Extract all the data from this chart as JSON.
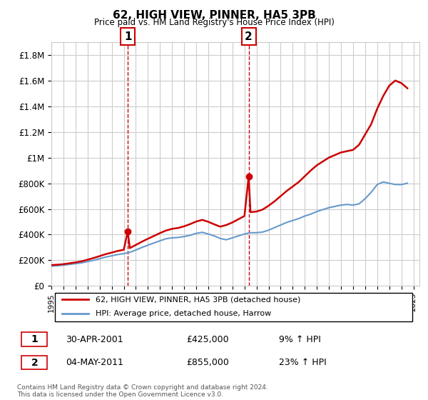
{
  "title": "62, HIGH VIEW, PINNER, HA5 3PB",
  "subtitle": "Price paid vs. HM Land Registry's House Price Index (HPI)",
  "footer": "Contains HM Land Registry data © Crown copyright and database right 2024.\nThis data is licensed under the Open Government Licence v3.0.",
  "legend_line1": "62, HIGH VIEW, PINNER, HA5 3PB (detached house)",
  "legend_line2": "HPI: Average price, detached house, Harrow",
  "annotation1_label": "1",
  "annotation1_date": "30-APR-2001",
  "annotation1_price": "£425,000",
  "annotation1_hpi": "9% ↑ HPI",
  "annotation2_label": "2",
  "annotation2_date": "04-MAY-2011",
  "annotation2_price": "£855,000",
  "annotation2_hpi": "23% ↑ HPI",
  "vline1_x": 2001.33,
  "vline2_x": 2011.35,
  "marker1_x": 2001.33,
  "marker1_y": 425000,
  "marker2_x": 2011.35,
  "marker2_y": 855000,
  "ylim": [
    0,
    1900000
  ],
  "xlim": [
    1995.0,
    2025.5
  ],
  "red_color": "#cc0000",
  "blue_color": "#6699cc",
  "grid_color": "#cccccc",
  "background_color": "#ffffff",
  "yticks": [
    0,
    200000,
    400000,
    600000,
    800000,
    1000000,
    1200000,
    1400000,
    1600000,
    1800000
  ],
  "ytick_labels": [
    "£0",
    "£200K",
    "£400K",
    "£600K",
    "£800K",
    "£1M",
    "£1.2M",
    "£1.4M",
    "£1.6M",
    "£1.8M"
  ],
  "xtick_years": [
    1995,
    1996,
    1997,
    1998,
    1999,
    2000,
    2001,
    2002,
    2003,
    2004,
    2005,
    2006,
    2007,
    2008,
    2009,
    2010,
    2011,
    2012,
    2013,
    2014,
    2015,
    2016,
    2017,
    2018,
    2019,
    2020,
    2021,
    2022,
    2023,
    2024,
    2025
  ],
  "hpi_x": [
    1995.0,
    1995.5,
    1996.0,
    1996.5,
    1997.0,
    1997.5,
    1998.0,
    1998.5,
    1999.0,
    1999.5,
    2000.0,
    2000.5,
    2001.0,
    2001.5,
    2002.0,
    2002.5,
    2003.0,
    2003.5,
    2004.0,
    2004.5,
    2005.0,
    2005.5,
    2006.0,
    2006.5,
    2007.0,
    2007.5,
    2008.0,
    2008.5,
    2009.0,
    2009.5,
    2010.0,
    2010.5,
    2011.0,
    2011.5,
    2012.0,
    2012.5,
    2013.0,
    2013.5,
    2014.0,
    2014.5,
    2015.0,
    2015.5,
    2016.0,
    2016.5,
    2017.0,
    2017.5,
    2018.0,
    2018.5,
    2019.0,
    2019.5,
    2020.0,
    2020.5,
    2021.0,
    2021.5,
    2022.0,
    2022.5,
    2023.0,
    2023.5,
    2024.0,
    2024.5
  ],
  "hpi_y": [
    155000,
    158000,
    162000,
    168000,
    174000,
    180000,
    190000,
    200000,
    213000,
    225000,
    235000,
    245000,
    252000,
    262000,
    280000,
    300000,
    318000,
    335000,
    352000,
    368000,
    375000,
    378000,
    385000,
    395000,
    410000,
    418000,
    405000,
    390000,
    370000,
    360000,
    375000,
    390000,
    405000,
    415000,
    415000,
    420000,
    435000,
    455000,
    475000,
    495000,
    510000,
    525000,
    545000,
    560000,
    580000,
    595000,
    610000,
    620000,
    630000,
    635000,
    630000,
    640000,
    680000,
    730000,
    790000,
    810000,
    800000,
    790000,
    790000,
    800000
  ],
  "price_x": [
    1995.0,
    1995.5,
    1996.0,
    1996.5,
    1997.0,
    1997.5,
    1998.0,
    1998.5,
    1999.0,
    1999.5,
    2000.0,
    2000.5,
    2001.0,
    2001.33,
    2001.5,
    2002.0,
    2002.5,
    2003.0,
    2003.5,
    2004.0,
    2004.5,
    2005.0,
    2005.5,
    2006.0,
    2006.5,
    2007.0,
    2007.5,
    2008.0,
    2008.5,
    2009.0,
    2009.5,
    2010.0,
    2010.5,
    2011.0,
    2011.35,
    2011.5,
    2012.0,
    2012.5,
    2013.0,
    2013.5,
    2014.0,
    2014.5,
    2015.0,
    2015.5,
    2016.0,
    2016.5,
    2017.0,
    2017.5,
    2018.0,
    2018.5,
    2019.0,
    2019.5,
    2020.0,
    2020.5,
    2021.0,
    2021.5,
    2022.0,
    2022.5,
    2023.0,
    2023.5,
    2024.0,
    2024.5
  ],
  "price_y": [
    163000,
    166000,
    170000,
    177000,
    184000,
    192000,
    205000,
    218000,
    233000,
    248000,
    260000,
    273000,
    282000,
    425000,
    295000,
    320000,
    345000,
    368000,
    390000,
    412000,
    432000,
    445000,
    452000,
    465000,
    482000,
    502000,
    515000,
    500000,
    480000,
    462000,
    475000,
    495000,
    520000,
    545000,
    855000,
    575000,
    580000,
    595000,
    625000,
    660000,
    700000,
    740000,
    775000,
    810000,
    855000,
    900000,
    940000,
    970000,
    1000000,
    1020000,
    1040000,
    1050000,
    1060000,
    1100000,
    1180000,
    1260000,
    1380000,
    1480000,
    1560000,
    1600000,
    1580000,
    1540000
  ]
}
